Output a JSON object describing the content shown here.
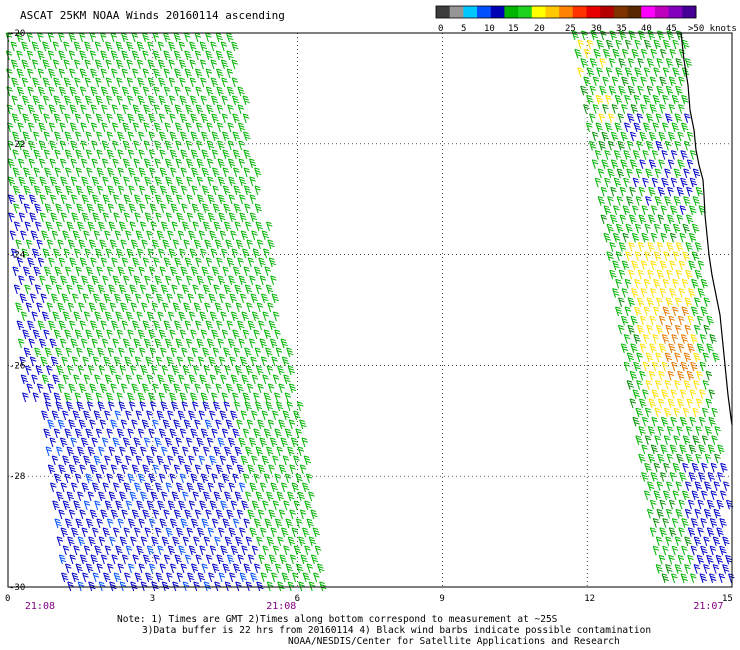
{
  "title": "ASCAT 25KM NOAA Winds 20160114 ascending",
  "legend": {
    "ticks": [
      "0",
      "5",
      "10",
      "15",
      "20",
      "25",
      "30",
      "35",
      "40",
      "45",
      ">50 knots"
    ],
    "colors": [
      "#3c3c3c",
      "#969696",
      "#00c8ff",
      "#0050ff",
      "#0000b4",
      "#00b400",
      "#1ed21e",
      "#ffff00",
      "#ffc800",
      "#ff8200",
      "#ff3200",
      "#e60000",
      "#b40000",
      "#7d3200",
      "#5a2800",
      "#ff00ff",
      "#be00be",
      "#8200be",
      "#460096"
    ]
  },
  "axes": {
    "lat_labels": [
      "-20",
      "-22",
      "-24",
      "-26",
      "-28",
      "-30"
    ],
    "lon_labels": [
      "0",
      "3",
      "6",
      "9",
      "12",
      "15"
    ],
    "times": [
      {
        "label": "21:08",
        "lon": 0.35
      },
      {
        "label": "21:08",
        "lon": 5.35
      },
      {
        "label": "21:07",
        "lon": 14.2
      }
    ]
  },
  "note": {
    "line1": "Note: 1) Times are GMT 2)Times along bottom correspond to measurement at ~25S",
    "line2": "3)Data buffer is 22 hrs from 20160114 4) Black wind barbs indicate possible contamination",
    "line3": "NOAA/NESDIS/Center for Satellite Applications and Research"
  },
  "colors": {
    "barb_blue": "#0000c8",
    "barb_lightblue": "#0050ff",
    "barb_green": "#00b400",
    "barb_darkgreen": "#008c00",
    "barb_yellow": "#ffe100",
    "barb_orange": "#e67800",
    "coast": "#000000",
    "grid": "#000000"
  }
}
